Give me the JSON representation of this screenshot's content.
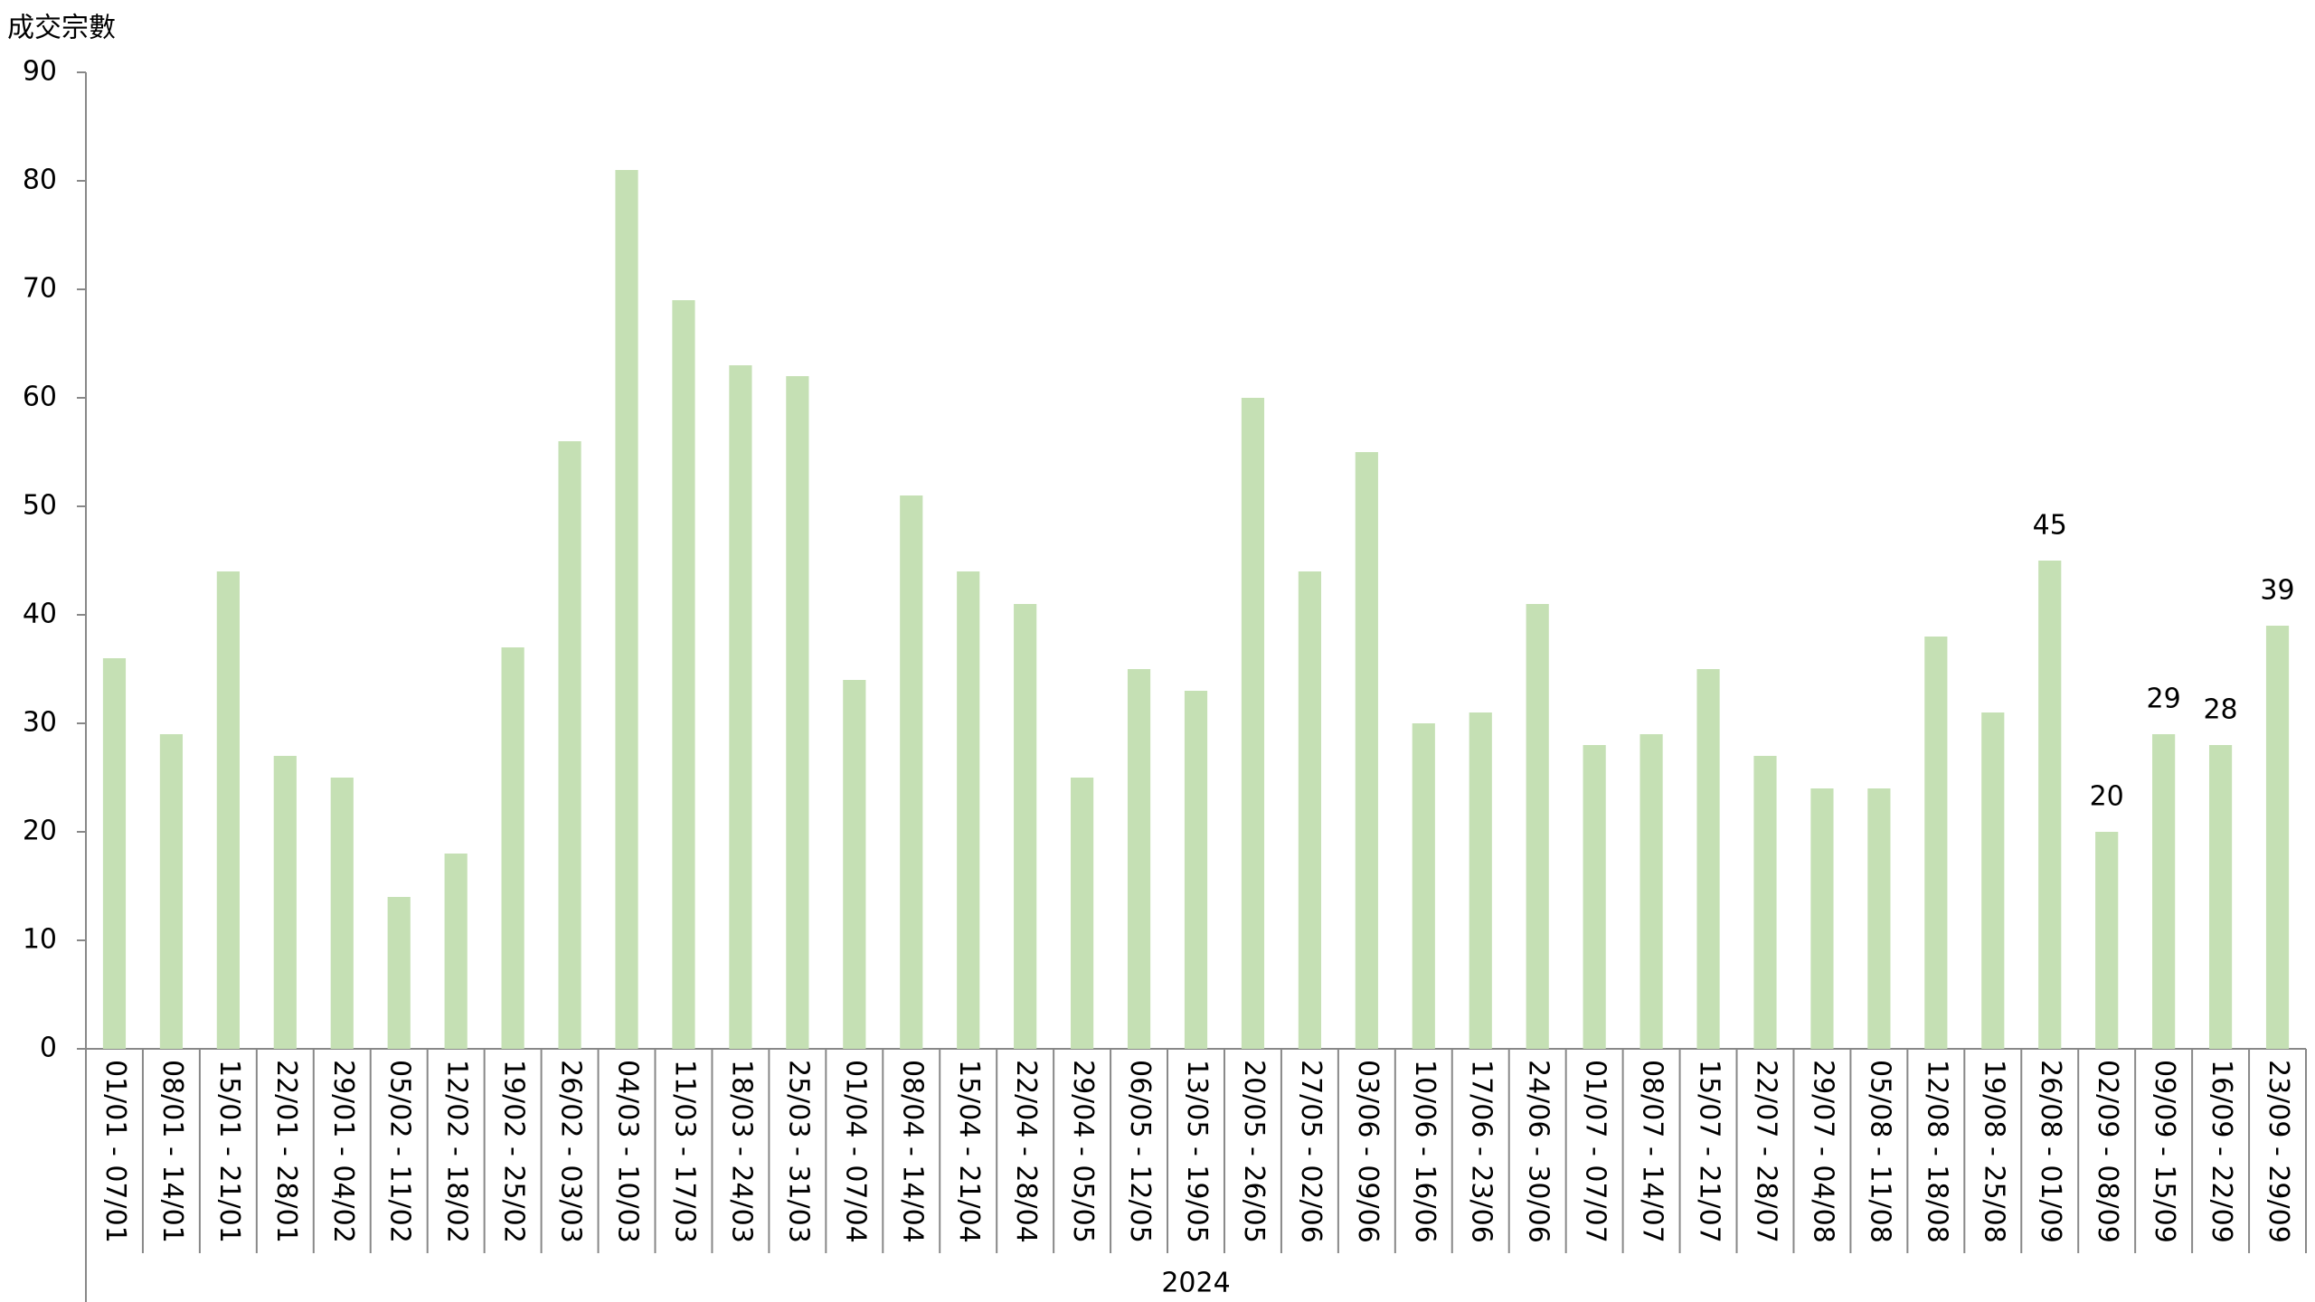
{
  "chart_data": {
    "type": "bar",
    "y_axis_title": "成交宗數",
    "group_label": "2024",
    "categories": [
      "01/01 - 07/01",
      "08/01 - 14/01",
      "15/01 - 21/01",
      "22/01 - 28/01",
      "29/01 - 04/02",
      "05/02 - 11/02",
      "12/02 - 18/02",
      "19/02 - 25/02",
      "26/02 - 03/03",
      "04/03 - 10/03",
      "11/03 - 17/03",
      "18/03 - 24/03",
      "25/03 - 31/03",
      "01/04 - 07/04",
      "08/04 - 14/04",
      "15/04 - 21/04",
      "22/04 - 28/04",
      "29/04 - 05/05",
      "06/05 - 12/05",
      "13/05 - 19/05",
      "20/05 - 26/05",
      "27/05 - 02/06",
      "03/06 - 09/06",
      "10/06 - 16/06",
      "17/06 - 23/06",
      "24/06 - 30/06",
      "01/07 - 07/07",
      "08/07 - 14/07",
      "15/07 - 21/07",
      "22/07 - 28/07",
      "29/07 - 04/08",
      "05/08 - 11/08",
      "12/08 - 18/08",
      "19/08 - 25/08",
      "26/08 - 01/09",
      "02/09 - 08/09",
      "09/09 - 15/09",
      "16/09 - 22/09",
      "23/09 - 29/09"
    ],
    "values": [
      36,
      29,
      44,
      27,
      25,
      14,
      18,
      37,
      56,
      81,
      69,
      63,
      62,
      34,
      51,
      44,
      41,
      25,
      35,
      33,
      60,
      44,
      55,
      30,
      31,
      41,
      28,
      29,
      35,
      27,
      24,
      24,
      38,
      31,
      45,
      20,
      29,
      28,
      39
    ],
    "value_labels": [
      null,
      null,
      null,
      null,
      null,
      null,
      null,
      null,
      null,
      null,
      null,
      null,
      null,
      null,
      null,
      null,
      null,
      null,
      null,
      null,
      null,
      null,
      null,
      null,
      null,
      null,
      null,
      null,
      null,
      null,
      null,
      null,
      null,
      null,
      "45",
      "20",
      "29",
      "28",
      "39"
    ],
    "color": "#c5e0b4",
    "ylim": [
      0,
      90
    ],
    "yticks": [
      0,
      10,
      20,
      30,
      40,
      50,
      60,
      70,
      80,
      90
    ],
    "grid": false
  }
}
